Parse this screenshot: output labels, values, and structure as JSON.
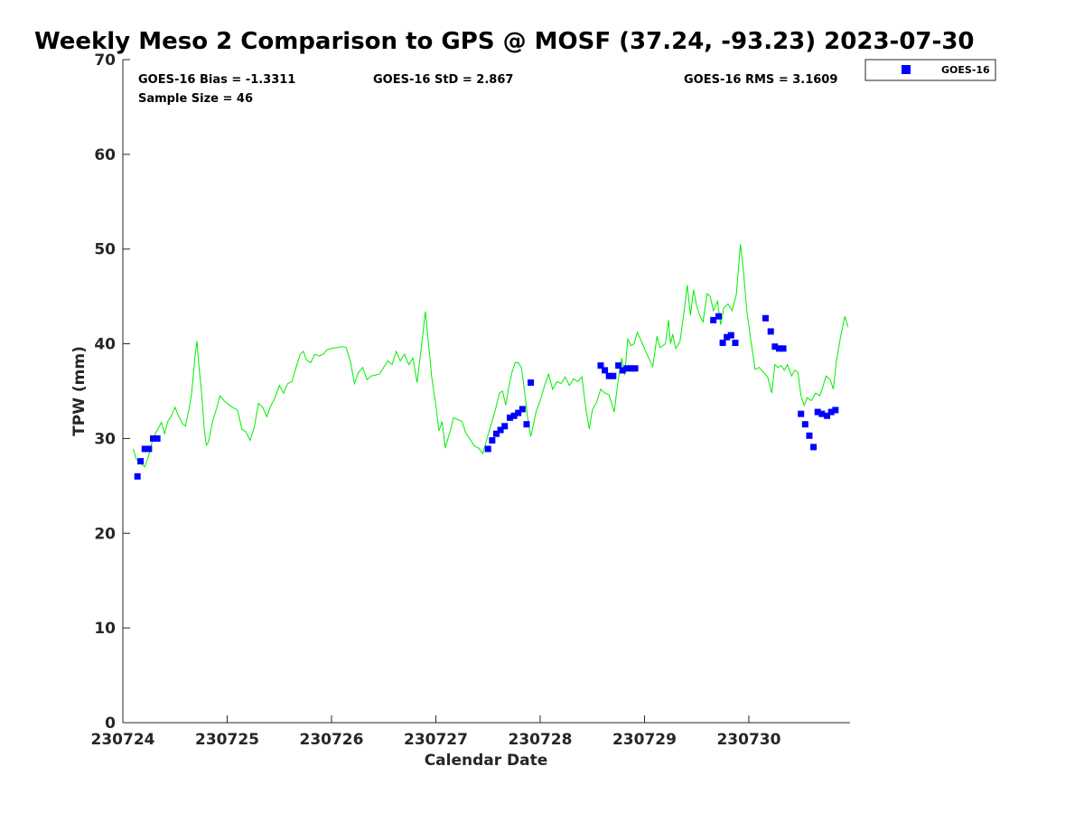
{
  "chart_data": {
    "type": "scatter",
    "title": "Weekly Meso 2 Comparison to GPS @ MOSF (37.24, -93.23) 2023-07-30",
    "xlabel": "Calendar Date",
    "ylabel": "TPW (mm)",
    "xlim": [
      0,
      6.97
    ],
    "ylim": [
      0,
      70
    ],
    "x_tick_labels": [
      "230724",
      "230725",
      "230726",
      "230727",
      "230728",
      "230729",
      "230730"
    ],
    "y_tick_labels": [
      "0",
      "10",
      "20",
      "30",
      "40",
      "50",
      "60",
      "70"
    ],
    "grid": false,
    "legend_position": "outside top-right",
    "stats": {
      "bias": "GOES-16 Bias = -1.3311",
      "std": "GOES-16 StD = 2.867",
      "rms": "GOES-16 RMS = 3.1609",
      "sample_size": "Sample Size = 46"
    },
    "series": [
      {
        "name": "GOES-16",
        "kind": "scatter",
        "color": "#0000ff",
        "marker": "square",
        "points": [
          [
            0.14,
            26.0
          ],
          [
            0.17,
            27.6
          ],
          [
            0.21,
            28.9
          ],
          [
            0.25,
            28.9
          ],
          [
            0.29,
            30.0
          ],
          [
            0.33,
            30.0
          ],
          [
            3.5,
            28.9
          ],
          [
            3.54,
            29.8
          ],
          [
            3.58,
            30.5
          ],
          [
            3.62,
            30.9
          ],
          [
            3.66,
            31.3
          ],
          [
            3.71,
            32.2
          ],
          [
            3.75,
            32.4
          ],
          [
            3.79,
            32.7
          ],
          [
            3.83,
            33.1
          ],
          [
            3.87,
            31.5
          ],
          [
            3.91,
            35.9
          ],
          [
            4.58,
            37.7
          ],
          [
            4.62,
            37.2
          ],
          [
            4.66,
            36.6
          ],
          [
            4.7,
            36.6
          ],
          [
            4.75,
            37.7
          ],
          [
            4.79,
            37.2
          ],
          [
            4.83,
            37.4
          ],
          [
            4.87,
            37.4
          ],
          [
            4.91,
            37.4
          ],
          [
            5.66,
            42.5
          ],
          [
            5.71,
            42.9
          ],
          [
            5.75,
            40.1
          ],
          [
            5.79,
            40.7
          ],
          [
            5.83,
            40.9
          ],
          [
            5.87,
            40.1
          ],
          [
            6.16,
            42.7
          ],
          [
            6.21,
            41.3
          ],
          [
            6.25,
            39.7
          ],
          [
            6.29,
            39.5
          ],
          [
            6.33,
            39.5
          ],
          [
            6.5,
            32.6
          ],
          [
            6.54,
            31.5
          ],
          [
            6.58,
            30.3
          ],
          [
            6.62,
            29.1
          ],
          [
            6.66,
            32.8
          ],
          [
            6.7,
            32.6
          ],
          [
            6.75,
            32.4
          ],
          [
            6.79,
            32.8
          ],
          [
            6.83,
            33.0
          ]
        ]
      },
      {
        "kind": "line",
        "color": "#00ee00",
        "points": [
          [
            0.1,
            28.9
          ],
          [
            0.13,
            27.8
          ],
          [
            0.17,
            27.4
          ],
          [
            0.21,
            27.0
          ],
          [
            0.25,
            28.3
          ],
          [
            0.28,
            29.6
          ],
          [
            0.31,
            30.5
          ],
          [
            0.34,
            31.1
          ],
          [
            0.37,
            31.7
          ],
          [
            0.4,
            30.5
          ],
          [
            0.43,
            31.8
          ],
          [
            0.47,
            32.5
          ],
          [
            0.5,
            33.3
          ],
          [
            0.53,
            32.5
          ],
          [
            0.57,
            31.6
          ],
          [
            0.6,
            31.3
          ],
          [
            0.63,
            32.9
          ],
          [
            0.66,
            34.8
          ],
          [
            0.69,
            38.5
          ],
          [
            0.71,
            40.3
          ],
          [
            0.73,
            37.5
          ],
          [
            0.75,
            35.5
          ],
          [
            0.78,
            31.0
          ],
          [
            0.8,
            29.3
          ],
          [
            0.82,
            29.6
          ],
          [
            0.86,
            31.8
          ],
          [
            0.9,
            33.2
          ],
          [
            0.93,
            34.5
          ],
          [
            0.97,
            34.0
          ],
          [
            1.0,
            33.7
          ],
          [
            1.05,
            33.3
          ],
          [
            1.1,
            33.0
          ],
          [
            1.14,
            31.0
          ],
          [
            1.18,
            30.7
          ],
          [
            1.22,
            29.8
          ],
          [
            1.26,
            31.2
          ],
          [
            1.3,
            33.7
          ],
          [
            1.34,
            33.3
          ],
          [
            1.38,
            32.3
          ],
          [
            1.42,
            33.5
          ],
          [
            1.46,
            34.3
          ],
          [
            1.5,
            35.6
          ],
          [
            1.54,
            34.8
          ],
          [
            1.58,
            35.8
          ],
          [
            1.62,
            36.0
          ],
          [
            1.66,
            37.5
          ],
          [
            1.7,
            38.9
          ],
          [
            1.73,
            39.2
          ],
          [
            1.76,
            38.3
          ],
          [
            1.8,
            38.0
          ],
          [
            1.84,
            38.9
          ],
          [
            1.88,
            38.7
          ],
          [
            1.92,
            38.9
          ],
          [
            1.96,
            39.4
          ],
          [
            2.0,
            39.5
          ],
          [
            2.05,
            39.6
          ],
          [
            2.1,
            39.7
          ],
          [
            2.14,
            39.6
          ],
          [
            2.18,
            38.2
          ],
          [
            2.22,
            35.8
          ],
          [
            2.26,
            37.0
          ],
          [
            2.3,
            37.5
          ],
          [
            2.34,
            36.2
          ],
          [
            2.38,
            36.6
          ],
          [
            2.42,
            36.7
          ],
          [
            2.46,
            36.8
          ],
          [
            2.5,
            37.5
          ],
          [
            2.54,
            38.2
          ],
          [
            2.58,
            37.8
          ],
          [
            2.62,
            39.2
          ],
          [
            2.66,
            38.2
          ],
          [
            2.7,
            38.9
          ],
          [
            2.74,
            37.8
          ],
          [
            2.78,
            38.5
          ],
          [
            2.82,
            35.9
          ],
          [
            2.86,
            39.5
          ],
          [
            2.9,
            43.4
          ],
          [
            2.93,
            40.0
          ],
          [
            2.96,
            36.5
          ],
          [
            3.0,
            33.5
          ],
          [
            3.03,
            30.8
          ],
          [
            3.06,
            31.8
          ],
          [
            3.09,
            29.0
          ],
          [
            3.13,
            30.5
          ],
          [
            3.17,
            32.2
          ],
          [
            3.21,
            32.0
          ],
          [
            3.25,
            31.8
          ],
          [
            3.29,
            30.5
          ],
          [
            3.33,
            29.9
          ],
          [
            3.37,
            29.2
          ],
          [
            3.41,
            29.0
          ],
          [
            3.45,
            28.4
          ],
          [
            3.49,
            30.0
          ],
          [
            3.53,
            31.5
          ],
          [
            3.57,
            33.0
          ],
          [
            3.61,
            34.8
          ],
          [
            3.64,
            35.0
          ],
          [
            3.67,
            33.5
          ],
          [
            3.7,
            35.5
          ],
          [
            3.73,
            37.0
          ],
          [
            3.76,
            38.0
          ],
          [
            3.79,
            38.0
          ],
          [
            3.82,
            37.5
          ],
          [
            3.85,
            35.0
          ],
          [
            3.88,
            32.2
          ],
          [
            3.91,
            30.2
          ],
          [
            3.96,
            32.8
          ],
          [
            4.0,
            34.0
          ],
          [
            4.04,
            35.5
          ],
          [
            4.08,
            36.8
          ],
          [
            4.12,
            35.2
          ],
          [
            4.16,
            36.0
          ],
          [
            4.2,
            35.8
          ],
          [
            4.24,
            36.5
          ],
          [
            4.28,
            35.6
          ],
          [
            4.32,
            36.3
          ],
          [
            4.36,
            36.0
          ],
          [
            4.4,
            36.5
          ],
          [
            4.44,
            33.0
          ],
          [
            4.47,
            31.0
          ],
          [
            4.5,
            33.0
          ],
          [
            4.54,
            33.8
          ],
          [
            4.58,
            35.2
          ],
          [
            4.62,
            34.8
          ],
          [
            4.66,
            34.6
          ],
          [
            4.69,
            33.5
          ],
          [
            4.71,
            32.8
          ],
          [
            4.74,
            35.5
          ],
          [
            4.78,
            38.5
          ],
          [
            4.81,
            36.7
          ],
          [
            4.84,
            40.5
          ],
          [
            4.87,
            39.8
          ],
          [
            4.9,
            40.0
          ],
          [
            4.93,
            41.2
          ],
          [
            4.96,
            40.5
          ],
          [
            5.0,
            39.5
          ],
          [
            5.04,
            38.5
          ],
          [
            5.08,
            37.6
          ],
          [
            5.12,
            40.8
          ],
          [
            5.15,
            39.6
          ],
          [
            5.2,
            40.0
          ],
          [
            5.23,
            42.5
          ],
          [
            5.25,
            40.0
          ],
          [
            5.27,
            41.0
          ],
          [
            5.3,
            39.5
          ],
          [
            5.34,
            40.2
          ],
          [
            5.38,
            43.5
          ],
          [
            5.41,
            46.2
          ],
          [
            5.44,
            43.0
          ],
          [
            5.47,
            45.7
          ],
          [
            5.5,
            44.0
          ],
          [
            5.53,
            43.0
          ],
          [
            5.56,
            42.3
          ],
          [
            5.6,
            45.3
          ],
          [
            5.63,
            45.0
          ],
          [
            5.66,
            43.5
          ],
          [
            5.7,
            44.5
          ],
          [
            5.73,
            42.0
          ],
          [
            5.76,
            43.8
          ],
          [
            5.8,
            44.2
          ],
          [
            5.84,
            43.5
          ],
          [
            5.88,
            45.2
          ],
          [
            5.92,
            50.5
          ],
          [
            5.95,
            47.5
          ],
          [
            5.98,
            43.5
          ],
          [
            6.02,
            40.3
          ],
          [
            6.06,
            37.3
          ],
          [
            6.1,
            37.5
          ],
          [
            6.14,
            37.0
          ],
          [
            6.18,
            36.5
          ],
          [
            6.22,
            34.8
          ],
          [
            6.25,
            37.8
          ],
          [
            6.28,
            37.5
          ],
          [
            6.31,
            37.7
          ],
          [
            6.34,
            37.2
          ],
          [
            6.37,
            37.8
          ],
          [
            6.41,
            36.6
          ],
          [
            6.44,
            37.2
          ],
          [
            6.47,
            37.0
          ],
          [
            6.5,
            34.5
          ],
          [
            6.53,
            33.5
          ],
          [
            6.56,
            34.3
          ],
          [
            6.6,
            34.0
          ],
          [
            6.64,
            34.8
          ],
          [
            6.68,
            34.5
          ],
          [
            6.71,
            35.5
          ],
          [
            6.74,
            36.6
          ],
          [
            6.78,
            36.2
          ],
          [
            6.81,
            35.2
          ],
          [
            6.84,
            38.2
          ],
          [
            6.88,
            40.8
          ],
          [
            6.92,
            42.9
          ],
          [
            6.95,
            41.8
          ]
        ]
      }
    ]
  }
}
